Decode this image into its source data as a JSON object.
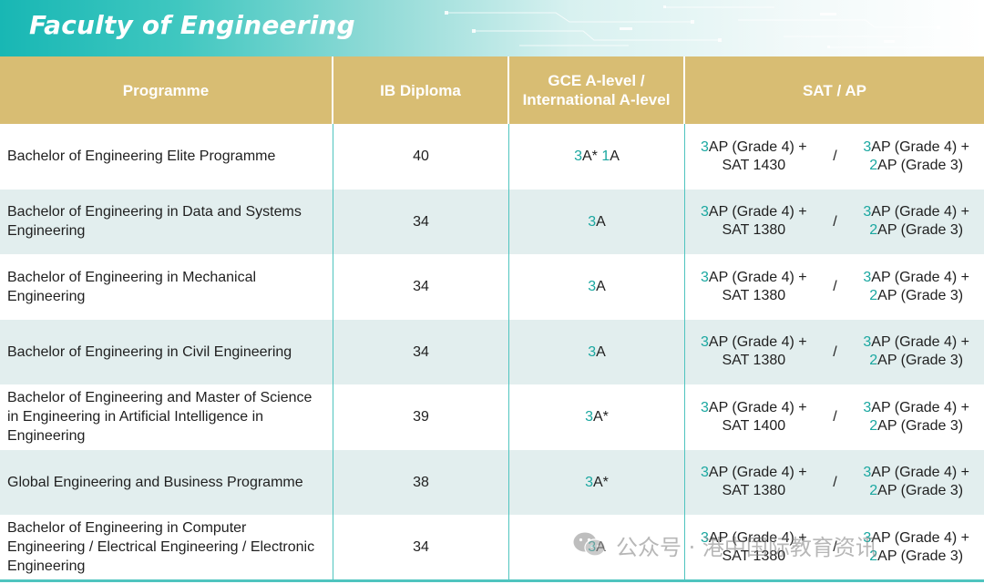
{
  "banner": {
    "title": "Faculty of Engineering"
  },
  "header": {
    "programme": "Programme",
    "ib": "IB Diploma",
    "gce": "GCE A-level /\nInternational A-level",
    "sat_ap": "SAT / AP"
  },
  "rows": [
    {
      "programme": "Bachelor of Engineering Elite Programme",
      "ib": "40",
      "gce": {
        "n1": "3",
        "t1": "A*",
        "n2": "1",
        "t2": "A"
      },
      "opt1": {
        "n": "3",
        "line1": "AP (Grade 4) +",
        "line2": "SAT 1430"
      },
      "separator": "/",
      "opt2": {
        "n1": "3",
        "line1": "AP (Grade 4) +",
        "n2": "2",
        "line2": "AP (Grade 3)"
      }
    },
    {
      "programme": "Bachelor of Engineering in Data and Systems Engineering",
      "ib": "34",
      "gce": {
        "n1": "3",
        "t1": "A",
        "n2": "",
        "t2": ""
      },
      "opt1": {
        "n": "3",
        "line1": "AP (Grade 4) +",
        "line2": "SAT 1380"
      },
      "separator": "/",
      "opt2": {
        "n1": "3",
        "line1": "AP (Grade 4) +",
        "n2": "2",
        "line2": "AP (Grade 3)"
      }
    },
    {
      "programme": "Bachelor of Engineering in Mechanical Engineering",
      "ib": "34",
      "gce": {
        "n1": "3",
        "t1": "A",
        "n2": "",
        "t2": ""
      },
      "opt1": {
        "n": "3",
        "line1": "AP (Grade 4) +",
        "line2": "SAT 1380"
      },
      "separator": "/",
      "opt2": {
        "n1": "3",
        "line1": "AP (Grade 4) +",
        "n2": "2",
        "line2": "AP (Grade 3)"
      }
    },
    {
      "programme": "Bachelor of Engineering in Civil Engineering",
      "ib": "34",
      "gce": {
        "n1": "3",
        "t1": "A",
        "n2": "",
        "t2": ""
      },
      "opt1": {
        "n": "3",
        "line1": "AP (Grade 4) +",
        "line2": "SAT 1380"
      },
      "separator": "/",
      "opt2": {
        "n1": "3",
        "line1": "AP (Grade 4) +",
        "n2": "2",
        "line2": "AP (Grade 3)"
      }
    },
    {
      "programme": "Bachelor of Engineering and Master of Science in Engineering in Artificial Intelligence in Engineering",
      "ib": "39",
      "gce": {
        "n1": "3",
        "t1": "A*",
        "n2": "",
        "t2": ""
      },
      "opt1": {
        "n": "3",
        "line1": "AP (Grade 4) +",
        "line2": "SAT 1400"
      },
      "separator": "/",
      "opt2": {
        "n1": "3",
        "line1": "AP (Grade 4) +",
        "n2": "2",
        "line2": "AP (Grade 3)"
      }
    },
    {
      "programme": "Global Engineering and Business Programme",
      "ib": "38",
      "gce": {
        "n1": "3",
        "t1": "A*",
        "n2": "",
        "t2": ""
      },
      "opt1": {
        "n": "3",
        "line1": "AP (Grade 4) +",
        "line2": "SAT 1380"
      },
      "separator": "/",
      "opt2": {
        "n1": "3",
        "line1": "AP (Grade 4) +",
        "n2": "2",
        "line2": "AP (Grade 3)"
      }
    },
    {
      "programme": "Bachelor of Engineering in Computer Engineering / Electrical Engineering / Electronic Engineering",
      "ib": "34",
      "gce": {
        "n1": "3",
        "t1": "A",
        "n2": "",
        "t2": ""
      },
      "opt1": {
        "n": "3",
        "line1": "AP (Grade 4) +",
        "line2": "SAT 1380"
      },
      "separator": "/",
      "opt2": {
        "n1": "3",
        "line1": "AP (Grade 4) +",
        "n2": "2",
        "line2": "AP (Grade 3)"
      }
    }
  ],
  "watermark": {
    "text": "公众号 · 港中国际教育资讯"
  },
  "colors": {
    "header_bg": "#d8bd73",
    "accent": "#1aa7a0",
    "row_alt": "#e2eeee",
    "divider": "#4fc4bf"
  }
}
